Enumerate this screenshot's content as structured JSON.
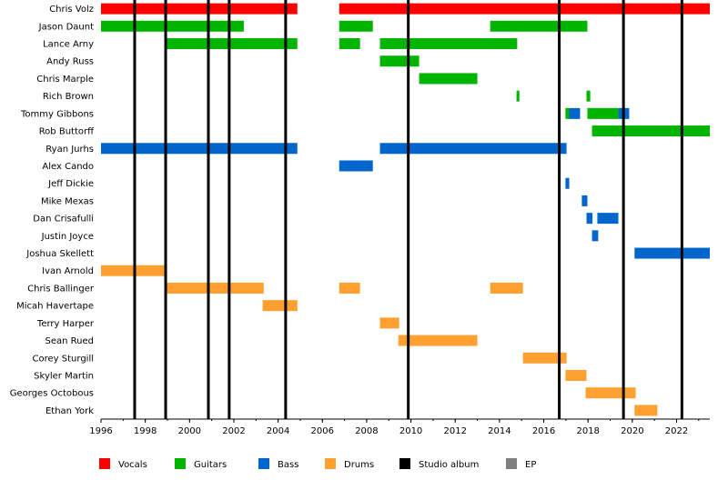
{
  "chart_data": {
    "type": "timeline",
    "title": "",
    "xlim": [
      1996,
      2023.5
    ],
    "x_ticks": [
      1996,
      1998,
      2000,
      2002,
      2004,
      2006,
      2008,
      2010,
      2012,
      2014,
      2016,
      2018,
      2020,
      2022
    ],
    "legend_position": "bottom",
    "roles": [
      {
        "key": "vocals",
        "label": "Vocals",
        "color": "#ff0000"
      },
      {
        "key": "guitars",
        "label": "Guitars",
        "color": "#00b400"
      },
      {
        "key": "bass",
        "label": "Bass",
        "color": "#0066cc"
      },
      {
        "key": "drums",
        "label": "Drums",
        "color": "#ffa030"
      },
      {
        "key": "album",
        "label": "Studio album",
        "color": "#000000"
      },
      {
        "key": "ep",
        "label": "EP",
        "color": "#808080"
      }
    ],
    "studio_albums": [
      1997.52,
      1998.92,
      2000.85,
      2001.79,
      2004.34,
      2009.88,
      2016.7,
      2019.6,
      2022.24
    ],
    "members": [
      {
        "name": "Chris Volz",
        "spans": [
          [
            "vocals",
            1996,
            2004.87
          ],
          [
            "vocals",
            2006.76,
            2023.5
          ]
        ]
      },
      {
        "name": "Jason Daunt",
        "spans": [
          [
            "guitars",
            1996,
            2002.45
          ],
          [
            "guitars",
            2006.76,
            2008.28
          ],
          [
            "guitars",
            2013.58,
            2017.97
          ]
        ]
      },
      {
        "name": "Lance Arny",
        "spans": [
          [
            "guitars",
            1998.96,
            2004.87
          ],
          [
            "guitars",
            2006.76,
            2007.7
          ],
          [
            "guitars",
            2008.6,
            2014.8
          ]
        ]
      },
      {
        "name": "Andy Russ",
        "spans": [
          [
            "guitars",
            2008.6,
            2010.37
          ]
        ]
      },
      {
        "name": "Chris Marple",
        "spans": [
          [
            "guitars",
            2010.37,
            2013.0
          ]
        ]
      },
      {
        "name": "Rich Brown",
        "spans": [
          [
            "guitars",
            2014.77,
            2014.9
          ],
          [
            "guitars",
            2017.93,
            2018.1
          ]
        ]
      },
      {
        "name": "Tommy Gibbons",
        "spans": [
          [
            "guitars",
            2016.98,
            2017.15
          ],
          [
            "bass",
            2017.15,
            2017.64
          ],
          [
            "guitars",
            2017.97,
            2019.37
          ],
          [
            "bass",
            2019.37,
            2019.86
          ]
        ]
      },
      {
        "name": "Rob Buttorff",
        "spans": [
          [
            "guitars",
            2018.18,
            2023.5
          ]
        ]
      },
      {
        "name": "Ryan Jurhs",
        "spans": [
          [
            "bass",
            1996,
            2004.87
          ],
          [
            "bass",
            2008.6,
            2017.03
          ]
        ]
      },
      {
        "name": "Alex Cando",
        "spans": [
          [
            "bass",
            2006.76,
            2008.28
          ]
        ]
      },
      {
        "name": "Jeff Dickie",
        "spans": [
          [
            "bass",
            2016.98,
            2017.15
          ]
        ]
      },
      {
        "name": "Mike Mexas",
        "spans": [
          [
            "bass",
            2017.72,
            2017.97
          ]
        ]
      },
      {
        "name": "Dan Crisafulli",
        "spans": [
          [
            "bass",
            2017.93,
            2018.2
          ],
          [
            "bass",
            2018.42,
            2019.37
          ]
        ]
      },
      {
        "name": "Justin Joyce",
        "spans": [
          [
            "bass",
            2018.18,
            2018.46
          ]
        ]
      },
      {
        "name": "Joshua Skellett",
        "spans": [
          [
            "bass",
            2020.1,
            2023.5
          ]
        ]
      },
      {
        "name": "Ivan Arnold",
        "spans": [
          [
            "drums",
            1996,
            1998.92
          ]
        ]
      },
      {
        "name": "Chris Ballinger",
        "spans": [
          [
            "drums",
            1998.96,
            2003.35
          ],
          [
            "drums",
            2006.76,
            2007.7
          ],
          [
            "drums",
            2013.58,
            2015.06
          ]
        ]
      },
      {
        "name": "Micah Havertape",
        "spans": [
          [
            "drums",
            2003.3,
            2004.87
          ]
        ]
      },
      {
        "name": "Terry Harper",
        "spans": [
          [
            "drums",
            2008.6,
            2009.47
          ]
        ]
      },
      {
        "name": "Sean Rued",
        "spans": [
          [
            "drums",
            2009.43,
            2013.0
          ]
        ]
      },
      {
        "name": "Corey Sturgill",
        "spans": [
          [
            "drums",
            2015.06,
            2017.03
          ]
        ]
      },
      {
        "name": "Skyler Martin",
        "spans": [
          [
            "drums",
            2016.98,
            2017.93
          ]
        ]
      },
      {
        "name": "Georges Octobous",
        "spans": [
          [
            "drums",
            2017.89,
            2020.15
          ]
        ]
      },
      {
        "name": "Ethan York",
        "spans": [
          [
            "drums",
            2020.1,
            2021.13
          ]
        ]
      }
    ]
  }
}
